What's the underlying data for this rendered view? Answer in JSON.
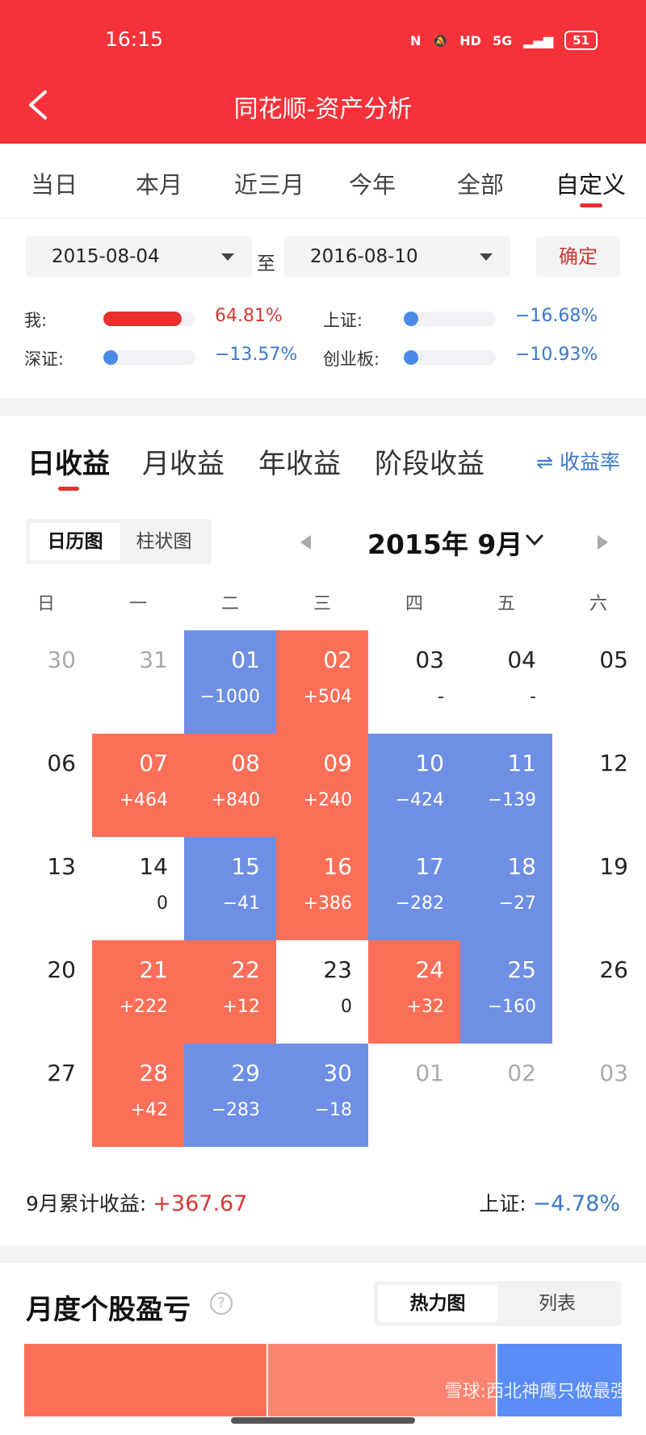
{
  "status_bar": {
    "time": "16:15",
    "network": "5G",
    "hd": "HD",
    "battery": "51"
  },
  "header": {
    "title": "同花顺-资产分析"
  },
  "period_tabs": [
    "当日",
    "本月",
    "近三月",
    "今年",
    "全部",
    "自定义"
  ],
  "period_active": 5,
  "date_range": {
    "start": "2015-08-04",
    "to_label": "至",
    "end": "2016-08-10",
    "confirm_label": "确定"
  },
  "comparison": [
    {
      "label": "我:",
      "value": "64.81%",
      "level": 0.85,
      "color": "#e5302e",
      "value_color": "#d23a35"
    },
    {
      "label": "上证:",
      "value": "−16.68%",
      "level": 0.05,
      "color": "#4a8ae6",
      "value_color": "#3b78c9"
    },
    {
      "label": "深证:",
      "value": "−13.57%",
      "level": 0.05,
      "color": "#4a8ae6",
      "value_color": "#3b78c9"
    },
    {
      "label": "创业板:",
      "value": "−10.93%",
      "level": 0.04,
      "color": "#4a8ae6",
      "value_color": "#3b78c9"
    }
  ],
  "return_tabs": [
    "日收益",
    "月收益",
    "年收益",
    "阶段收益"
  ],
  "return_active": 0,
  "rate_toggle": "⇌ 收益率",
  "view_toggle": [
    "日历图",
    "柱状图"
  ],
  "month_title": "2015年 9月",
  "weekdays": [
    "日",
    "一",
    "二",
    "三",
    "四",
    "五",
    "六"
  ],
  "calendar": [
    [
      {
        "d": "30",
        "t": "out"
      },
      {
        "d": "31",
        "t": "out"
      },
      {
        "d": "01",
        "p": "−1000",
        "t": "neg"
      },
      {
        "d": "02",
        "p": "+504",
        "t": "pos"
      },
      {
        "d": "03",
        "p": "-",
        "t": "neutral"
      },
      {
        "d": "04",
        "p": "-",
        "t": "neutral"
      },
      {
        "d": "05",
        "t": "weekend"
      }
    ],
    [
      {
        "d": "06",
        "t": "weekend"
      },
      {
        "d": "07",
        "p": "+464",
        "t": "pos"
      },
      {
        "d": "08",
        "p": "+840",
        "t": "pos"
      },
      {
        "d": "09",
        "p": "+240",
        "t": "pos"
      },
      {
        "d": "10",
        "p": "−424",
        "t": "neg"
      },
      {
        "d": "11",
        "p": "−139",
        "t": "neg"
      },
      {
        "d": "12",
        "t": "weekend"
      }
    ],
    [
      {
        "d": "13",
        "t": "weekend"
      },
      {
        "d": "14",
        "p": "0",
        "t": "neutral"
      },
      {
        "d": "15",
        "p": "−41",
        "t": "neg"
      },
      {
        "d": "16",
        "p": "+386",
        "t": "pos"
      },
      {
        "d": "17",
        "p": "−282",
        "t": "neg"
      },
      {
        "d": "18",
        "p": "−27",
        "t": "neg"
      },
      {
        "d": "19",
        "t": "weekend"
      }
    ],
    [
      {
        "d": "20",
        "t": "weekend"
      },
      {
        "d": "21",
        "p": "+222",
        "t": "pos"
      },
      {
        "d": "22",
        "p": "+12",
        "t": "pos"
      },
      {
        "d": "23",
        "p": "0",
        "t": "neutral"
      },
      {
        "d": "24",
        "p": "+32",
        "t": "pos"
      },
      {
        "d": "25",
        "p": "−160",
        "t": "neg"
      },
      {
        "d": "26",
        "t": "weekend"
      }
    ],
    [
      {
        "d": "27",
        "t": "weekend"
      },
      {
        "d": "28",
        "p": "+42",
        "t": "pos"
      },
      {
        "d": "29",
        "p": "−283",
        "t": "neg"
      },
      {
        "d": "30",
        "p": "−18",
        "t": "neg"
      },
      {
        "d": "01",
        "t": "out"
      },
      {
        "d": "02",
        "t": "out"
      },
      {
        "d": "03",
        "t": "out"
      }
    ]
  ],
  "month_summary": {
    "label": "9月累计收益:",
    "value": "+367.67"
  },
  "index_summary": {
    "label": "上证:",
    "value": "−4.78%"
  },
  "stock_section": {
    "title": "月度个股盈亏",
    "help": "?",
    "toggle": [
      "热力图",
      "列表"
    ]
  },
  "heatmap_colors": [
    "#fb6f59",
    "#fc8470",
    "#5a8df5"
  ],
  "watermark": "雪球:西北神鹰只做最强"
}
